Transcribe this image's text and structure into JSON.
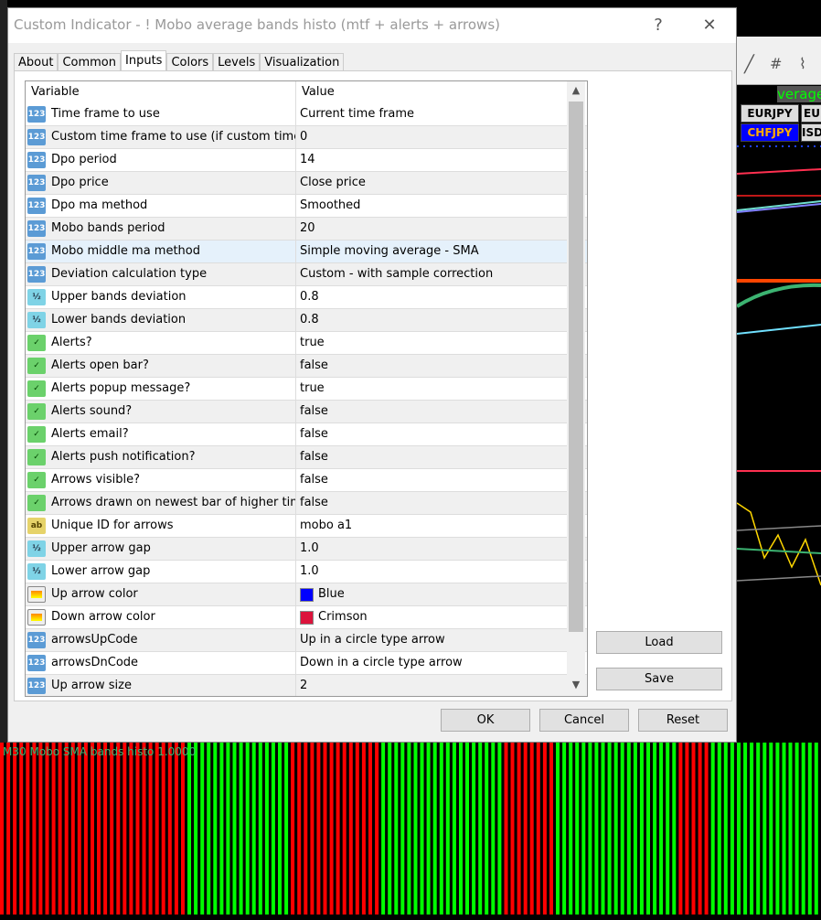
{
  "window": {
    "title": "Custom Indicator - ! Mobo average bands histo (mtf + alerts + arrows)",
    "help": "?",
    "close": "✕"
  },
  "tabs": [
    {
      "label": "About"
    },
    {
      "label": "Common"
    },
    {
      "label": "Inputs",
      "active": true
    },
    {
      "label": "Colors"
    },
    {
      "label": "Levels"
    },
    {
      "label": "Visualization"
    }
  ],
  "table": {
    "headers": [
      "Variable",
      "Value"
    ],
    "rows": [
      {
        "icon": "int",
        "var": "Time frame to use",
        "val": "Current time frame"
      },
      {
        "icon": "int",
        "var": "Custom time frame to use (if custom time fra...",
        "val": "0"
      },
      {
        "icon": "int",
        "var": "Dpo period",
        "val": "14"
      },
      {
        "icon": "int",
        "var": "Dpo price",
        "val": "Close price"
      },
      {
        "icon": "int",
        "var": "Dpo ma method",
        "val": "Smoothed"
      },
      {
        "icon": "int",
        "var": "Mobo bands period",
        "val": "20"
      },
      {
        "icon": "int",
        "var": "Mobo middle ma method",
        "val": "Simple moving average - SMA",
        "selected": true
      },
      {
        "icon": "int",
        "var": "Deviation calculation type",
        "val": "Custom - with sample correction"
      },
      {
        "icon": "dbl",
        "var": "Upper bands deviation",
        "val": "0.8"
      },
      {
        "icon": "dbl",
        "var": "Lower bands deviation",
        "val": "0.8"
      },
      {
        "icon": "bool",
        "var": "Alerts?",
        "val": "true"
      },
      {
        "icon": "bool",
        "var": "Alerts open bar?",
        "val": "false"
      },
      {
        "icon": "bool",
        "var": "Alerts popup message?",
        "val": "true"
      },
      {
        "icon": "bool",
        "var": "Alerts sound?",
        "val": "false"
      },
      {
        "icon": "bool",
        "var": "Alerts email?",
        "val": "false"
      },
      {
        "icon": "bool",
        "var": "Alerts push notification?",
        "val": "false"
      },
      {
        "icon": "bool",
        "var": "Arrows visible?",
        "val": "false"
      },
      {
        "icon": "bool",
        "var": "Arrows drawn on newest bar of higher time f...",
        "val": "false"
      },
      {
        "icon": "str",
        "var": "Unique ID for arrows",
        "val": "mobo a1"
      },
      {
        "icon": "dbl",
        "var": "Upper arrow gap",
        "val": "1.0"
      },
      {
        "icon": "dbl",
        "var": "Lower arrow gap",
        "val": "1.0"
      },
      {
        "icon": "clr",
        "var": "Up arrow color",
        "val": "Blue",
        "swatch": "#0000ff"
      },
      {
        "icon": "clr",
        "var": "Down arrow color",
        "val": "Crimson",
        "swatch": "#dc143c"
      },
      {
        "icon": "int",
        "var": "arrowsUpCode",
        "val": "Up in a circle type arrow"
      },
      {
        "icon": "int",
        "var": "arrowsDnCode",
        "val": "Down in a circle type arrow"
      },
      {
        "icon": "int",
        "var": "Up arrow size",
        "val": "2"
      }
    ]
  },
  "buttons": {
    "load": "Load",
    "save": "Save",
    "ok": "OK",
    "cancel": "Cancel",
    "reset": "Reset"
  },
  "chart": {
    "title_fragment": "verage",
    "symbols": [
      "EURJPY",
      "EU",
      "CHFJPY",
      "ISD"
    ]
  },
  "histogram": {
    "label": "M30 Mobo SMA bands histo 1.0000",
    "colors": {
      "up": "#00ff00",
      "down": "#ff0000"
    },
    "segments": [
      {
        "dir": "down",
        "bars": 29
      },
      {
        "dir": "up",
        "bars": 16
      },
      {
        "dir": "down",
        "bars": 14
      },
      {
        "dir": "up",
        "bars": 19
      },
      {
        "dir": "down",
        "bars": 8
      },
      {
        "dir": "up",
        "bars": 19
      },
      {
        "dir": "down",
        "bars": 5
      },
      {
        "dir": "up",
        "bars": 17
      }
    ]
  }
}
